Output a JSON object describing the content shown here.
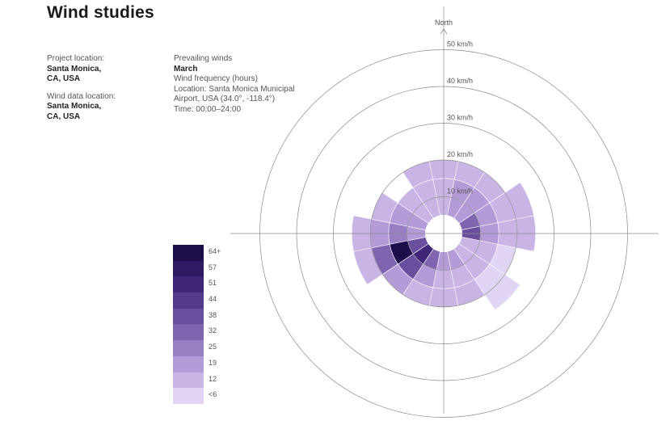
{
  "header": {
    "title": "Wind studies"
  },
  "project": {
    "project_location_label": "Project location:",
    "project_location_value_1": "Santa Monica,",
    "project_location_value_2": "CA, USA",
    "data_location_label": "Wind data location:",
    "data_location_value_1": "Santa Monica,",
    "data_location_value_2": "CA, USA"
  },
  "study": {
    "heading": "Prevailing winds",
    "month": "March",
    "metric": "Wind frequency (hours)",
    "location_line1": "Location: Santa Monica Municipal",
    "location_line2": "Airport, USA (34.0°, -118.4°)",
    "time": "Time: 00:00–24:00"
  },
  "chart_data": {
    "type": "heatmap",
    "subtype": "polar wind rose",
    "north_label": "North",
    "ring_labels": [
      "10 km/h",
      "20 km/h",
      "30 km/h",
      "40 km/h",
      "50 km/h"
    ],
    "sectors": 16,
    "sector_start_deg": -11.25,
    "speed_bands_kmh": [
      [
        5,
        10
      ],
      [
        10,
        15
      ],
      [
        15,
        20
      ],
      [
        20,
        25
      ]
    ],
    "cell_value_scale": "hours",
    "cells": [
      {
        "sector": 0,
        "band": 0,
        "value": 12
      },
      {
        "sector": 0,
        "band": 1,
        "value": 12
      },
      {
        "sector": 0,
        "band": 2,
        "value": 12
      },
      {
        "sector": 1,
        "band": 0,
        "value": 19
      },
      {
        "sector": 1,
        "band": 1,
        "value": 19
      },
      {
        "sector": 1,
        "band": 2,
        "value": 12
      },
      {
        "sector": 2,
        "band": 0,
        "value": 19
      },
      {
        "sector": 2,
        "band": 1,
        "value": 19
      },
      {
        "sector": 2,
        "band": 2,
        "value": 12
      },
      {
        "sector": 3,
        "band": 0,
        "value": 32
      },
      {
        "sector": 3,
        "band": 1,
        "value": 19
      },
      {
        "sector": 3,
        "band": 2,
        "value": 12
      },
      {
        "sector": 3,
        "band": 3,
        "value": 12
      },
      {
        "sector": 4,
        "band": 0,
        "value": 38
      },
      {
        "sector": 4,
        "band": 1,
        "value": 19
      },
      {
        "sector": 4,
        "band": 2,
        "value": 12
      },
      {
        "sector": 4,
        "band": 3,
        "value": 12
      },
      {
        "sector": 5,
        "band": 0,
        "value": 12
      },
      {
        "sector": 5,
        "band": 1,
        "value": 12
      },
      {
        "sector": 5,
        "band": 2,
        "value": 6
      },
      {
        "sector": 6,
        "band": 0,
        "value": 12
      },
      {
        "sector": 6,
        "band": 1,
        "value": 12
      },
      {
        "sector": 6,
        "band": 2,
        "value": 6
      },
      {
        "sector": 6,
        "band": 3,
        "value": 6
      },
      {
        "sector": 7,
        "band": 0,
        "value": 19
      },
      {
        "sector": 7,
        "band": 1,
        "value": 12
      },
      {
        "sector": 7,
        "band": 2,
        "value": 12
      },
      {
        "sector": 8,
        "band": 0,
        "value": 19
      },
      {
        "sector": 8,
        "band": 1,
        "value": 12
      },
      {
        "sector": 8,
        "band": 2,
        "value": 12
      },
      {
        "sector": 9,
        "band": 0,
        "value": 32
      },
      {
        "sector": 9,
        "band": 1,
        "value": 19
      },
      {
        "sector": 9,
        "band": 2,
        "value": 12
      },
      {
        "sector": 10,
        "band": 0,
        "value": 51
      },
      {
        "sector": 10,
        "band": 1,
        "value": 38
      },
      {
        "sector": 10,
        "band": 2,
        "value": 19
      },
      {
        "sector": 11,
        "band": 0,
        "value": 38
      },
      {
        "sector": 11,
        "band": 1,
        "value": 64
      },
      {
        "sector": 11,
        "band": 2,
        "value": 32
      },
      {
        "sector": 11,
        "band": 3,
        "value": 12
      },
      {
        "sector": 12,
        "band": 0,
        "value": 19
      },
      {
        "sector": 12,
        "band": 1,
        "value": 25
      },
      {
        "sector": 12,
        "band": 2,
        "value": 19
      },
      {
        "sector": 12,
        "band": 3,
        "value": 12
      },
      {
        "sector": 13,
        "band": 0,
        "value": 19
      },
      {
        "sector": 13,
        "band": 1,
        "value": 19
      },
      {
        "sector": 13,
        "band": 2,
        "value": 12
      },
      {
        "sector": 14,
        "band": 0,
        "value": 12
      },
      {
        "sector": 14,
        "band": 1,
        "value": 12
      },
      {
        "sector": 15,
        "band": 0,
        "value": 12
      },
      {
        "sector": 15,
        "band": 1,
        "value": 12
      },
      {
        "sector": 15,
        "band": 2,
        "value": 12
      }
    ],
    "legend": {
      "labels": [
        "64+",
        "57",
        "51",
        "44",
        "38",
        "32",
        "25",
        "19",
        "12",
        "<6"
      ],
      "thresholds": [
        64,
        57,
        51,
        44,
        38,
        32,
        25,
        19,
        12,
        6
      ],
      "colors": [
        "#1c0e4a",
        "#2e1a62",
        "#3e2578",
        "#553a8c",
        "#6a4f9e",
        "#7f65b0",
        "#987fc4",
        "#b39bd8",
        "#c9b4e6",
        "#e2d4f4"
      ]
    },
    "grid": true
  }
}
